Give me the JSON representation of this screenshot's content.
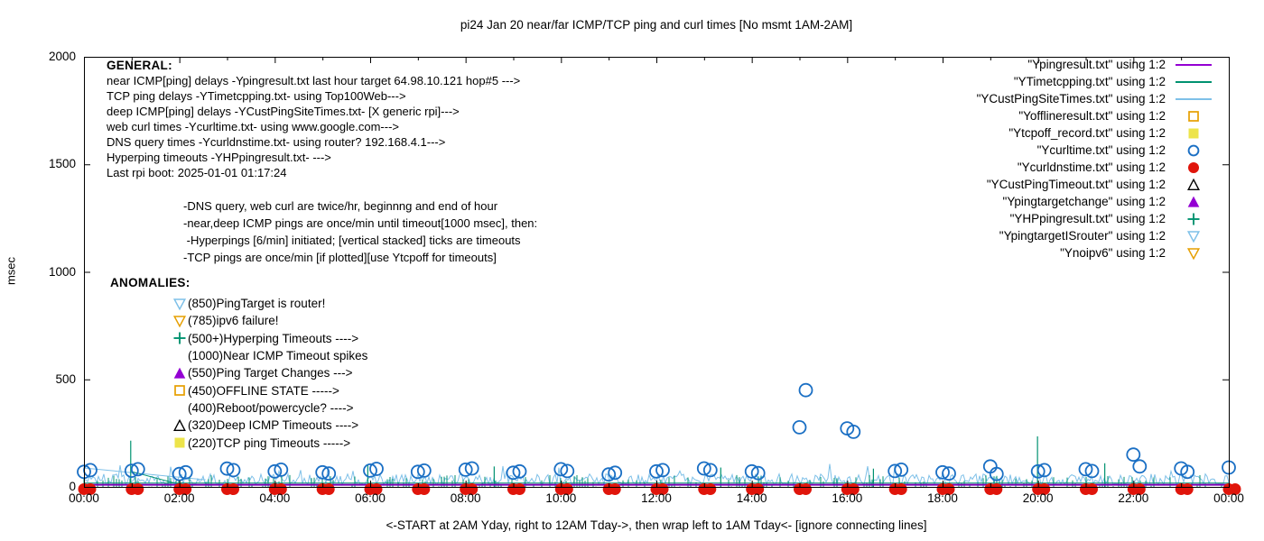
{
  "title": "pi24 Jan 20  near/far ICMP/TCP ping and curl times [No msmt 1AM-2AM]",
  "y_axis": {
    "label": "msec",
    "ticks": [
      0,
      500,
      1000,
      1500,
      2000
    ]
  },
  "x_axis": {
    "tick_labels": [
      "00:00",
      "02:00",
      "04:00",
      "06:00",
      "08:00",
      "10:00",
      "12:00",
      "14:00",
      "16:00",
      "18:00",
      "20:00",
      "22:00",
      "00:00"
    ],
    "caption": "<-START at 2AM Yday, right to 12AM Tday->, then wrap left to 1AM Tday<- [ignore connecting lines]"
  },
  "general": {
    "header": "GENERAL:",
    "lines": [
      "near ICMP[ping] delays -Ypingresult.txt last hour target 64.98.10.121 hop#5 --->",
      "TCP ping delays -YTimetcpping.txt- using Top100Web--->",
      "deep ICMP[ping] delays -YCustPingSiteTimes.txt- [X generic rpi]--->",
      "web curl times -Ycurltime.txt- using www.google.com--->",
      "DNS query times -Ycurldnstime.txt- using router? 192.168.4.1--->",
      "Hyperping timeouts -YHPpingresult.txt- --->",
      "Last rpi boot: 2025-01-01 01:17:24"
    ],
    "notes": [
      "-DNS query, web curl are twice/hr, beginnng and end of hour",
      "-near,deep ICMP pings are once/min until timeout[1000 msec], then:",
      " -Hyperpings [6/min] initiated; [vertical stacked] ticks are timeouts",
      "-TCP pings are once/min [if plotted][use Ytcpoff for timeouts]"
    ]
  },
  "anomalies": {
    "header": "ANOMALIES:",
    "items": [
      {
        "marker": "triangle-down-open",
        "color": "#7ec0e8",
        "text": "(850)PingTarget is router!"
      },
      {
        "marker": "triangle-down-open",
        "color": "#e69f00",
        "text": "(785)ipv6 failure!"
      },
      {
        "marker": "plus",
        "color": "#009270",
        "text": "(500+)Hyperping Timeouts ---->"
      },
      {
        "marker": "none",
        "color": "",
        "text": "(1000)Near ICMP Timeout spikes"
      },
      {
        "marker": "triangle-up-filled",
        "color": "#9400d3",
        "text": "(550)Ping Target Changes --->"
      },
      {
        "marker": "square-open",
        "color": "#e69f00",
        "text": "(450)OFFLINE STATE ----->"
      },
      {
        "marker": "none",
        "color": "",
        "text": "(400)Reboot/powercycle? ---->"
      },
      {
        "marker": "triangle-up-open",
        "color": "#000000",
        "text": "(320)Deep ICMP Timeouts ---->"
      },
      {
        "marker": "square-filled",
        "color": "#ede44a",
        "text": "(220)TCP ping Timeouts ----->"
      }
    ]
  },
  "legend": [
    {
      "label": "\"Ypingresult.txt\" using 1:2",
      "marker": "line",
      "color": "#9400d3"
    },
    {
      "label": "\"YTimetcpping.txt\" using 1:2",
      "marker": "line",
      "color": "#009270"
    },
    {
      "label": "\"YCustPingSiteTimes.txt\" using 1:2",
      "marker": "line",
      "color": "#7ec0e8"
    },
    {
      "label": "\"Yofflineresult.txt\" using 1:2",
      "marker": "square-open",
      "color": "#e69f00"
    },
    {
      "label": "\"Ytcpoff_record.txt\" using 1:2",
      "marker": "square-filled",
      "color": "#ede44a"
    },
    {
      "label": "\"Ycurltime.txt\" using 1:2",
      "marker": "circle-open",
      "color": "#1a6fc4"
    },
    {
      "label": "\"Ycurldnstime.txt\" using 1:2",
      "marker": "circle-filled",
      "color": "#e0150b"
    },
    {
      "label": "\"YCustPingTimeout.txt\" using 1:2",
      "marker": "triangle-up-open",
      "color": "#000000"
    },
    {
      "label": "\"Ypingtargetchange\" using 1:2",
      "marker": "triangle-up-filled",
      "color": "#9400d3"
    },
    {
      "label": "\"YHPpingresult.txt\" using 1:2",
      "marker": "plus",
      "color": "#009270"
    },
    {
      "label": "\"YpingtargetISrouter\" using 1:2",
      "marker": "triangle-down-open",
      "color": "#7ec0e8"
    },
    {
      "label": "\"Ynoipv6\" using 1:2",
      "marker": "triangle-down-open",
      "color": "#e69f00"
    }
  ],
  "chart_data": {
    "type": "line",
    "x_unit": "hour-of-day",
    "x_range_hours": [
      0,
      24
    ],
    "ylim": [
      0,
      2000
    ],
    "y_major_tick": 500,
    "x_minor_tick_hours": 1,
    "x_major_tick_hours": 2,
    "grid": false,
    "legend_position": "top-right-outside-markers",
    "noise_seed": 987654321,
    "series": [
      {
        "name": "Ypingresult.txt",
        "style": "flat-line",
        "color": "#7d00b8",
        "value_msec": 10
      },
      {
        "name": "YTimetcpping.txt",
        "style": "impulse-noise",
        "color": "#009270",
        "baseline_msec": 18,
        "band_msec": [
          0,
          55
        ],
        "spikes": [
          [
            0.98,
            215
          ],
          [
            5.95,
            100
          ],
          [
            8.6,
            95
          ],
          [
            13.35,
            90
          ],
          [
            16.55,
            85
          ],
          [
            19.99,
            235
          ],
          [
            21.4,
            110
          ]
        ],
        "artifact_line": [
          [
            1.02,
            70
          ],
          [
            2.0,
            12
          ]
        ]
      },
      {
        "name": "YCustPingSiteTimes.txt",
        "style": "noisy-line",
        "color": "#7ec0e8",
        "band_msec": [
          8,
          60
        ],
        "spike_max_msec": 120,
        "artifact_line": [
          [
            0.0,
            88
          ],
          [
            2.55,
            33
          ]
        ]
      },
      {
        "name": "Ycurltime.txt",
        "style": "open-circle-pairs",
        "color": "#1a6fc4",
        "hourly_pairs": [
          [
            70,
            78
          ],
          [
            75,
            82
          ],
          [
            60,
            68
          ],
          [
            85,
            78
          ],
          [
            72,
            80
          ],
          [
            68,
            62
          ],
          [
            76,
            84
          ],
          [
            70,
            76
          ],
          [
            80,
            86
          ],
          [
            66,
            72
          ],
          [
            82,
            74
          ],
          [
            58,
            66
          ],
          [
            72,
            78
          ],
          [
            86,
            78
          ],
          [
            72,
            64
          ],
          [
            277,
            450
          ],
          [
            272,
            256
          ],
          [
            74,
            80
          ],
          [
            68,
            62
          ],
          [
            95,
            60
          ],
          [
            72,
            78
          ],
          [
            82,
            74
          ],
          [
            150,
            95
          ],
          [
            86,
            70
          ],
          [
            90,
            null
          ]
        ]
      },
      {
        "name": "Ycurldnstime.txt",
        "style": "filled-dot-pairs",
        "color": "#e0150b",
        "hourly_value_msec": 2
      }
    ]
  }
}
